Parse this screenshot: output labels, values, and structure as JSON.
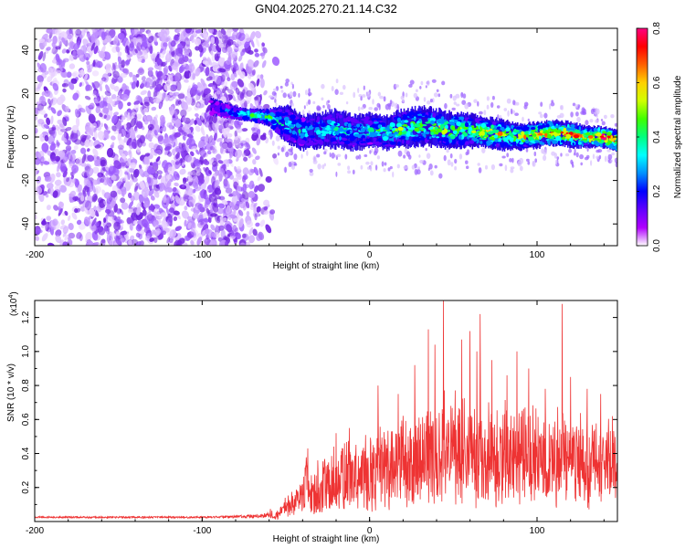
{
  "title": "GN04.2025.270.21.14.C32",
  "chart_data": [
    {
      "type": "heatmap",
      "title": "GN04.2025.270.21.14.C32",
      "xlabel": "Height of straight line (km)",
      "ylabel": "Frequency (Hz)",
      "xlim": [
        -200,
        148
      ],
      "ylim": [
        -50,
        50
      ],
      "xticks": [
        -200,
        -100,
        0,
        100
      ],
      "yticks": [
        -40,
        -20,
        0,
        20,
        40
      ],
      "colorbar": {
        "label": "Normalized spectral amplitude",
        "range": [
          0,
          0.8
        ],
        "ticks": [
          "0.0",
          "0.2",
          "0.4",
          "0.6",
          "0.8"
        ],
        "colors": [
          "#ffffff",
          "#b000ff",
          "#6000ff",
          "#0000ff",
          "#0090ff",
          "#00ffff",
          "#00ff80",
          "#40ff00",
          "#d0ff00",
          "#ffd000",
          "#ff6000",
          "#ff0000",
          "#ff0080"
        ]
      },
      "noise_region": {
        "x_range": [
          -200,
          -55
        ],
        "amplitude": [
          0.05,
          0.2
        ]
      },
      "signal_band": {
        "x": [
          -95,
          -80,
          -70,
          -60,
          -50,
          -40,
          -30,
          -20,
          -10,
          0,
          10,
          20,
          30,
          40,
          50,
          60,
          70,
          80,
          90,
          100,
          110,
          120,
          130,
          140,
          148
        ],
        "center_hz": [
          14,
          11,
          10,
          9,
          6,
          2,
          3,
          4,
          2,
          3,
          2,
          4,
          5,
          4,
          3,
          3,
          2,
          1,
          0,
          1,
          2,
          1,
          0,
          0,
          -2
        ],
        "halfwidth_hz": [
          4,
          3,
          3,
          4,
          9,
          8,
          8,
          9,
          8,
          8,
          8,
          9,
          9,
          9,
          8,
          8,
          7,
          7,
          6,
          6,
          6,
          6,
          5,
          5,
          5
        ],
        "peak_amp": [
          0.15,
          0.3,
          0.5,
          0.45,
          0.35,
          0.35,
          0.4,
          0.4,
          0.35,
          0.4,
          0.45,
          0.5,
          0.5,
          0.55,
          0.55,
          0.5,
          0.6,
          0.6,
          0.6,
          0.65,
          0.7,
          0.7,
          0.6,
          0.8,
          0.7
        ]
      }
    },
    {
      "type": "line",
      "xlabel": "Height of straight line (km)",
      "ylabel": "SNR (10 * v/v)",
      "scale_label": "(x10",
      "scale_exp": "4",
      "xlim": [
        -200,
        148
      ],
      "ylim": [
        0,
        1.3
      ],
      "xticks": [
        -200,
        -100,
        0,
        100
      ],
      "yticks": [
        "0.2",
        "0.4",
        "0.6",
        "0.8",
        "1.0",
        "1.2"
      ],
      "color": "#ee3333",
      "series": [
        {
          "name": "SNR",
          "x": [
            -200,
            -150,
            -100,
            -70,
            -55,
            -50,
            -45,
            -40,
            -38,
            -35,
            -30,
            -25,
            -20,
            -15,
            -10,
            -5,
            0,
            10,
            20,
            30,
            40,
            50,
            60,
            70,
            80,
            90,
            100,
            110,
            120,
            130,
            140,
            148
          ],
          "baseline": [
            0.02,
            0.02,
            0.02,
            0.02,
            0.03,
            0.06,
            0.08,
            0.08,
            0.08,
            0.07,
            0.08,
            0.1,
            0.12,
            0.14,
            0.15,
            0.16,
            0.17,
            0.2,
            0.22,
            0.24,
            0.25,
            0.25,
            0.24,
            0.24,
            0.23,
            0.23,
            0.23,
            0.22,
            0.22,
            0.22,
            0.22,
            0.22
          ],
          "typical": [
            0.03,
            0.03,
            0.03,
            0.04,
            0.06,
            0.12,
            0.15,
            0.2,
            0.3,
            0.2,
            0.25,
            0.3,
            0.32,
            0.34,
            0.36,
            0.38,
            0.4,
            0.45,
            0.5,
            0.55,
            0.55,
            0.56,
            0.55,
            0.53,
            0.52,
            0.52,
            0.52,
            0.5,
            0.5,
            0.48,
            0.47,
            0.45
          ],
          "peaks": [
            [
              -37,
              0.43
            ],
            [
              -31,
              0.36
            ],
            [
              -20,
              0.52
            ],
            [
              -12,
              0.55
            ],
            [
              5,
              0.8
            ],
            [
              17,
              0.75
            ],
            [
              27,
              0.92
            ],
            [
              35,
              1.13
            ],
            [
              39,
              1.04
            ],
            [
              44,
              1.3
            ],
            [
              55,
              1.07
            ],
            [
              60,
              1.12
            ],
            [
              64,
              1.0
            ],
            [
              66,
              1.22
            ],
            [
              73,
              0.95
            ],
            [
              82,
              0.86
            ],
            [
              88,
              1.0
            ],
            [
              95,
              0.9
            ],
            [
              105,
              0.78
            ],
            [
              115,
              1.28
            ],
            [
              120,
              0.85
            ],
            [
              130,
              0.78
            ],
            [
              138,
              0.75
            ],
            [
              145,
              0.62
            ]
          ]
        }
      ]
    }
  ]
}
